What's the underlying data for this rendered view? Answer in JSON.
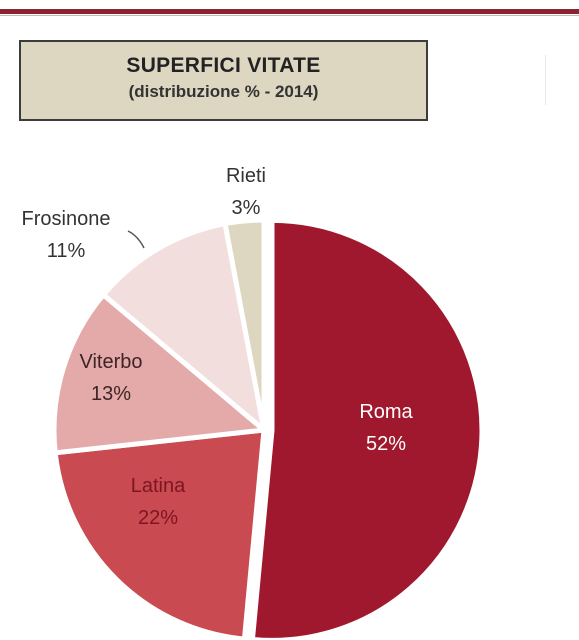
{
  "chart_data": {
    "type": "pie",
    "title": "SUPERFICI VITATE",
    "subtitle": "(distribuzione % - 2014)",
    "slices": [
      {
        "label": "Roma",
        "value": 52,
        "value_label": "52%",
        "color": "#a0182d"
      },
      {
        "label": "Latina",
        "value": 22,
        "value_label": "22%",
        "color": "#c94a50"
      },
      {
        "label": "Viterbo",
        "value": 13,
        "value_label": "13%",
        "color": "#e4aaaa"
      },
      {
        "label": "Frosinone",
        "value": 11,
        "value_label": "11%",
        "color": "#f3dede"
      },
      {
        "label": "Rieti",
        "value": 3,
        "value_label": "3%",
        "color": "#ddd6c1"
      }
    ],
    "legend": "none"
  }
}
